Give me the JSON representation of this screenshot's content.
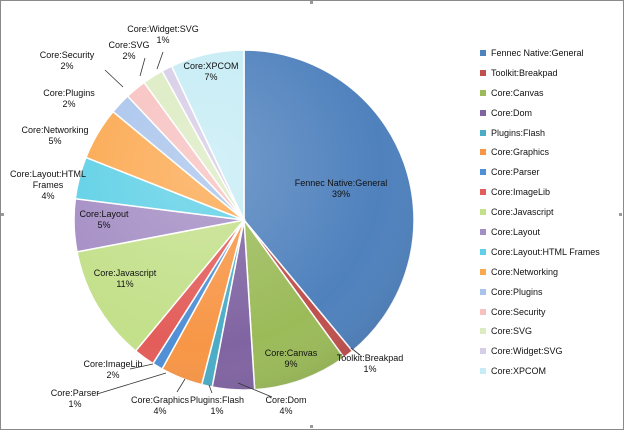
{
  "chart_data": {
    "type": "pie",
    "title": "",
    "slices": [
      {
        "name": "Fennec Native:General",
        "value": 39,
        "percent_label": "39%",
        "color": "#4f81bd"
      },
      {
        "name": "Toolkit:Breakpad",
        "value": 1,
        "percent_label": "1%",
        "color": "#c0504d"
      },
      {
        "name": "Core:Canvas",
        "value": 9,
        "percent_label": "9%",
        "color": "#9bbb59"
      },
      {
        "name": "Core:Dom",
        "value": 4,
        "percent_label": "4%",
        "color": "#8064a2"
      },
      {
        "name": "Plugins:Flash",
        "value": 1,
        "percent_label": "1%",
        "color": "#4bacc6"
      },
      {
        "name": "Core:Graphics",
        "value": 4,
        "percent_label": "4%",
        "color": "#f79646"
      },
      {
        "name": "Core:Parser",
        "value": 1,
        "percent_label": "1%",
        "color": "#4f8fd6"
      },
      {
        "name": "Core:ImageLib",
        "value": 2,
        "percent_label": "2%",
        "color": "#e35d5a"
      },
      {
        "name": "Core:Javascript",
        "value": 11,
        "percent_label": "11%",
        "color": "#c3e08a"
      },
      {
        "name": "Core:Layout",
        "value": 5,
        "percent_label": "5%",
        "color": "#a48dc4"
      },
      {
        "name": "Core:Layout:HTML Frames",
        "value": 4,
        "percent_label": "4%",
        "color": "#5fd0e6"
      },
      {
        "name": "Core:Networking",
        "value": 5,
        "percent_label": "5%",
        "color": "#fba84f"
      },
      {
        "name": "Core:Plugins",
        "value": 2,
        "percent_label": "2%",
        "color": "#a9c4ec"
      },
      {
        "name": "Core:Security",
        "value": 2,
        "percent_label": "2%",
        "color": "#f7c1c0"
      },
      {
        "name": "Core:SVG",
        "value": 2,
        "percent_label": "2%",
        "color": "#dcebc2"
      },
      {
        "name": "Core:Widget:SVG",
        "value": 1,
        "percent_label": "1%",
        "color": "#d6cde6"
      },
      {
        "name": "Core:XPCOM",
        "value": 7,
        "percent_label": "7%",
        "color": "#c6ecf5"
      }
    ],
    "legend_position": "right",
    "label_text_color": "#111111"
  }
}
